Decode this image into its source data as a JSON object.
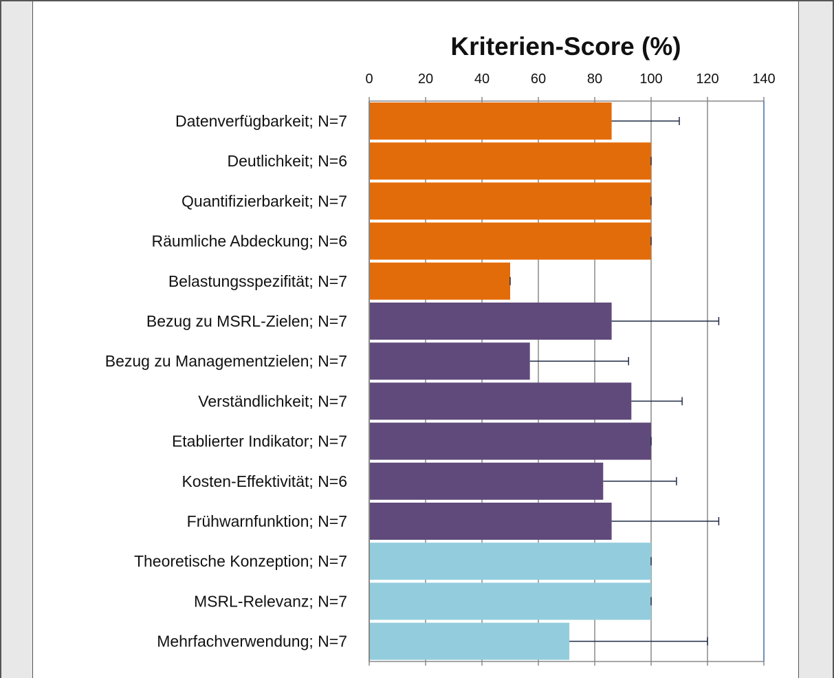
{
  "chart_data": {
    "type": "bar",
    "orientation": "horizontal",
    "title": "Kriterien-Score (%)",
    "xlabel": "",
    "ylabel": "",
    "xlim": [
      0,
      140
    ],
    "xticks": [
      0,
      20,
      40,
      60,
      80,
      100,
      120,
      140
    ],
    "axis_position": "top",
    "grid": true,
    "categories": [
      "Datenverfügbarkeit; N=7",
      "Deutlichkeit; N=6",
      "Quantifizierbarkeit; N=7",
      "Räumliche Abdeckung; N=6",
      "Belastungsspezifität; N=7",
      "Bezug zu MSRL-Zielen; N=7",
      "Bezug zu Managementzielen; N=7",
      "Verständlichkeit; N=7",
      "Etablierter Indikator; N=7",
      "Kosten-Effektivität; N=6",
      "Frühwarnfunktion; N=7",
      "Theoretische Konzeption; N=7",
      "MSRL-Relevanz; N=7",
      "Mehrfachverwendung; N=7"
    ],
    "values": [
      86,
      100,
      100,
      100,
      50,
      86,
      57,
      93,
      100,
      83,
      86,
      100,
      100,
      71
    ],
    "error_upper": [
      24,
      0,
      0,
      0,
      0,
      38,
      35,
      18,
      0,
      26,
      38,
      0,
      0,
      49
    ],
    "colors": [
      "#e36c0a",
      "#e36c0a",
      "#e36c0a",
      "#e36c0a",
      "#e36c0a",
      "#604a7b",
      "#604a7b",
      "#604a7b",
      "#604a7b",
      "#604a7b",
      "#604a7b",
      "#93cddd",
      "#93cddd",
      "#93cddd"
    ]
  },
  "style": {
    "gridline_color": "#888888",
    "plot_border_color": "#4f81bd",
    "errorbar_color": "#1f2a44"
  }
}
